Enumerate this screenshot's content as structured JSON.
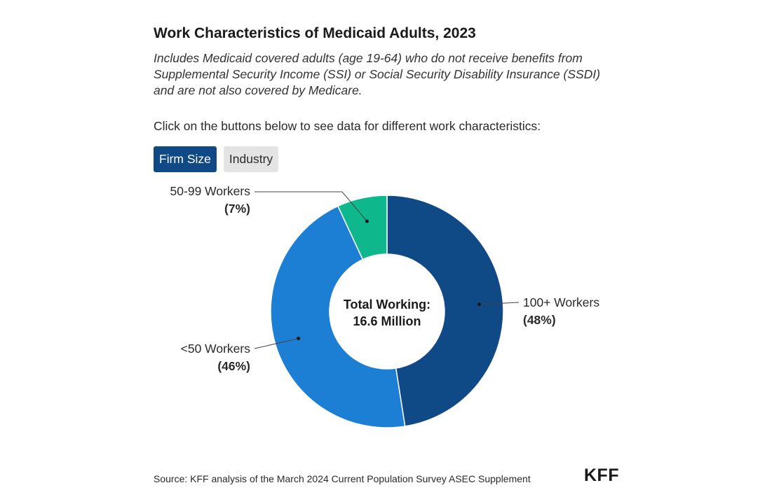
{
  "title": "Work Characteristics of Medicaid Adults, 2023",
  "subtitle": "Includes Medicaid covered adults (age 19-64) who do not receive benefits from Supplemental Security Income (SSI) or Social Security Disability Insurance (SSDI) and are not also covered by Medicare.",
  "prompt": "Click on the buttons below to see data for different work characteristics:",
  "buttons": [
    {
      "label": "Firm Size",
      "active": true
    },
    {
      "label": "Industry",
      "active": false
    }
  ],
  "source": "Source: KFF analysis of the March 2024 Current Population Survey ASEC Supplement",
  "logo": "KFF",
  "colors": {
    "accent": "#0f4a86",
    "slice_100plus": "#0f4a86",
    "slice_lt50": "#1c7fd4",
    "slice_50_99": "#0fb88c"
  },
  "chart_data": {
    "type": "pie",
    "style": "donut",
    "center_label": [
      "Total Working:",
      "16.6 Million"
    ],
    "slices": [
      {
        "label": "100+ Workers",
        "pct_label": "(48%)",
        "value": 48,
        "color": "#0f4a86"
      },
      {
        "label": "<50 Workers",
        "pct_label": "(46%)",
        "value": 46,
        "color": "#1c7fd4"
      },
      {
        "label": "50-99 Workers",
        "pct_label": "(7%)",
        "value": 7,
        "color": "#0fb88c"
      }
    ]
  }
}
